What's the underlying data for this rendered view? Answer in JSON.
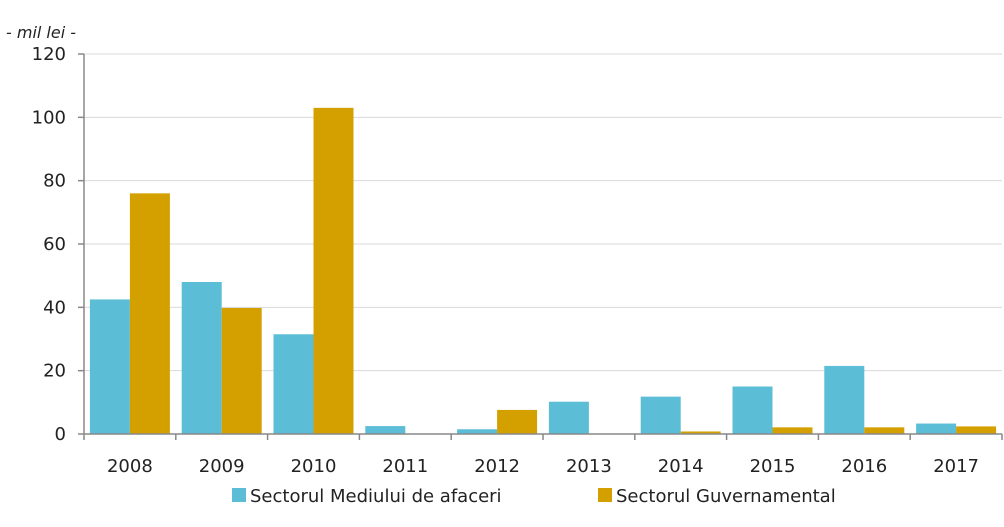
{
  "chart_data": {
    "type": "bar",
    "unit_label": "- mil lei  -",
    "categories": [
      "2008",
      "2009",
      "2010",
      "2011",
      "2012",
      "2013",
      "2014",
      "2015",
      "2016",
      "2017"
    ],
    "series": [
      {
        "name": "Sectorul Mediului de afaceri",
        "color": "#5bbdd6",
        "values": [
          42.5,
          48,
          31.5,
          2.5,
          1.5,
          10.2,
          11.8,
          15,
          21.5,
          3.3
        ]
      },
      {
        "name": "Sectorul Guvernamental",
        "color": "#d4a000",
        "values": [
          76,
          39.8,
          103,
          0,
          7.6,
          0,
          0.8,
          2.1,
          2.1,
          2.4
        ]
      }
    ],
    "ylim": [
      0,
      120
    ],
    "yticks": [
      0,
      20,
      40,
      60,
      80,
      100,
      120
    ],
    "grid": true,
    "legend_position": "bottom"
  }
}
